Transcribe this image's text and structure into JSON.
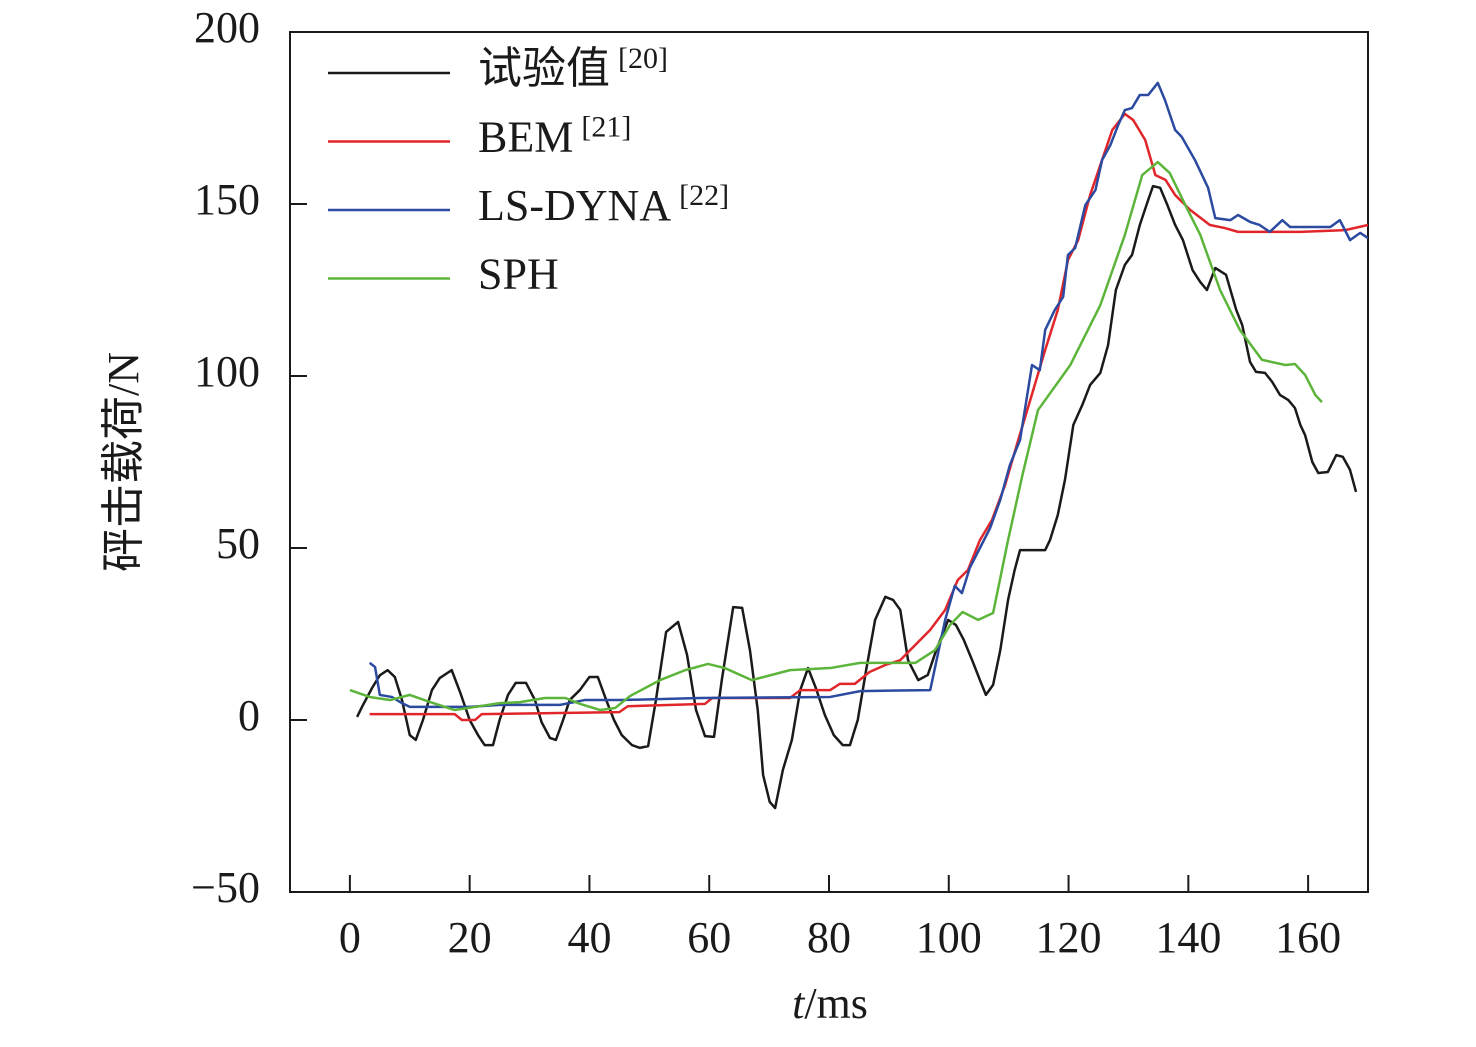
{
  "chart_data": {
    "type": "line",
    "xlabel": "t/ms",
    "ylabel": "砰击载荷/N",
    "xlim": [
      -10,
      170
    ],
    "ylim": [
      -50,
      200
    ],
    "xticks": [
      0,
      20,
      40,
      60,
      80,
      100,
      120,
      140,
      160
    ],
    "yticks": [
      {
        "value": -50,
        "label": "−50"
      },
      0,
      50,
      100,
      150,
      200
    ],
    "legend": "upper left",
    "grid": false,
    "series": [
      {
        "name": "试验值[20]",
        "color": "#1a1a1a",
        "x": [
          1.2,
          2.2,
          3.7,
          5,
          6.3,
          7.5,
          8.7,
          10,
          11,
          12.2,
          13.7,
          15,
          17,
          18.4,
          20,
          21.4,
          22.5,
          23.9,
          25,
          26.4,
          27.7,
          29.4,
          30.9,
          32,
          33.4,
          34.4,
          35.6,
          36.7,
          38.4,
          40,
          41.4,
          42.8,
          44.1,
          45.4,
          47.1,
          48.4,
          49.8,
          51.1,
          52.8,
          54.8,
          56.3,
          57.8,
          59.3,
          60.8,
          62.1,
          64,
          65.5,
          66.8,
          68.1,
          69,
          70.1,
          71,
          72.3,
          73.8,
          75.2,
          76.5,
          77.8,
          79.3,
          80.8,
          82.3,
          83.5,
          84.8,
          86.2,
          87.7,
          89.4,
          90.7,
          91.9,
          93.2,
          94.9,
          96.5,
          97.9,
          99.9,
          101.2,
          102.5,
          103.9,
          105.2,
          106.2,
          107.4,
          108.6,
          109.9,
          111,
          111.9,
          116.1,
          116.9,
          118.2,
          119.4,
          120.8,
          122.3,
          123.6,
          125.3,
          126.6,
          127.9,
          129.4,
          130.6,
          131.9,
          133.3,
          134.1,
          135.3,
          136.5,
          137.8,
          139.1,
          140.7,
          142,
          143.1,
          144.5,
          146.3,
          148,
          149,
          150.3,
          151.3,
          152.8,
          154,
          155.3,
          156.7,
          157.8,
          158.7,
          159.5,
          160.7,
          161.7,
          163.3,
          164.7,
          165.8,
          167,
          168
        ],
        "values": [
          0.9,
          4.4,
          9.3,
          13,
          14.5,
          12.5,
          5.8,
          -4.4,
          -5.8,
          0,
          8.7,
          12.2,
          14.5,
          8.1,
          0,
          -4.4,
          -7.3,
          -7.3,
          0,
          7.3,
          10.8,
          10.8,
          5.8,
          -0.6,
          -5.2,
          -5.8,
          0,
          5.8,
          8.7,
          12.5,
          12.5,
          5.8,
          0,
          -4.4,
          -7.3,
          -8.1,
          -7.6,
          5.8,
          25.6,
          28.5,
          18.9,
          2.9,
          -4.7,
          -4.9,
          11.6,
          32.8,
          32.6,
          20.3,
          2.9,
          -16,
          -23.8,
          -25.6,
          -14.5,
          -5.8,
          8.7,
          15.1,
          9.3,
          1.5,
          -4.4,
          -7.3,
          -7.3,
          0,
          14.5,
          29.1,
          35.8,
          34.9,
          32,
          17.4,
          11.6,
          13.1,
          20.3,
          29.1,
          27.6,
          23.3,
          17.4,
          11.6,
          7.3,
          10.2,
          20.3,
          34.9,
          43.6,
          49.4,
          49.4,
          52.3,
          59.6,
          69.8,
          85.8,
          91.6,
          97.4,
          100.9,
          109,
          125,
          132.3,
          135.2,
          143.9,
          151.2,
          155.2,
          154.7,
          149.7,
          143.9,
          139.5,
          130.8,
          127.3,
          125,
          131.4,
          129.4,
          119.2,
          114.8,
          104.1,
          101.2,
          100.9,
          98.3,
          94.5,
          93,
          90.7,
          85.8,
          82.8,
          75,
          71.8,
          72.1,
          77,
          76.5,
          72.7,
          66.3
        ]
      },
      {
        "name": "BEM[21]",
        "color": "#e0262b",
        "x": [
          3.3,
          17.5,
          18.7,
          20.9,
          22,
          45,
          46.4,
          59.3,
          60.5,
          73.5,
          75.2,
          80.2,
          81.8,
          84.3,
          86.8,
          89.4,
          91.9,
          94.4,
          96.9,
          99.4,
          101.5,
          103.2,
          105.2,
          107.2,
          109.4,
          111.6,
          113.6,
          116.1,
          118.2,
          119.9,
          121.6,
          123.6,
          125.3,
          127.3,
          129.4,
          130.8,
          132.8,
          134.5,
          136.2,
          137.8,
          140.3,
          143.6,
          146.1,
          148.3,
          158.7,
          166.2,
          170
        ],
        "values": [
          1.7,
          1.7,
          0,
          0,
          1.7,
          2.3,
          4,
          4.7,
          6.4,
          6.4,
          8.7,
          8.7,
          10.5,
          10.5,
          14,
          16,
          17.4,
          21.8,
          26.2,
          32,
          40.7,
          43.6,
          52.3,
          58.1,
          68.3,
          81.4,
          93,
          107.6,
          119.2,
          133.7,
          139.5,
          152.6,
          161.3,
          171.5,
          176.2,
          174.4,
          168.6,
          158.4,
          157,
          152.6,
          148.3,
          143.9,
          143,
          141.9,
          141.9,
          142.4,
          143.9
        ]
      },
      {
        "name": "LS-DYNA[22]",
        "color": "#2b4aa0",
        "x": [
          3.3,
          4.2,
          5,
          7,
          8.7,
          10,
          20,
          25,
          35.1,
          39.2,
          45.4,
          58.5,
          80.2,
          85.2,
          96.9,
          99.4,
          101,
          102.2,
          103.5,
          105.2,
          106.9,
          108.6,
          110.2,
          111.9,
          113.9,
          115.2,
          116.1,
          117.7,
          119.1,
          119.9,
          121.1,
          122.8,
          124.5,
          125.6,
          127,
          128.3,
          129.4,
          130.6,
          131.9,
          133.3,
          134.9,
          136.1,
          137.8,
          138.9,
          141.1,
          143.3,
          144.5,
          147,
          148.3,
          150.3,
          151.9,
          153.6,
          155.7,
          157,
          158.7,
          163.7,
          165.3,
          167,
          168.7,
          170
        ],
        "values": [
          16.6,
          15.4,
          7.3,
          6.7,
          4.9,
          3.8,
          3.8,
          4.4,
          4.4,
          5.8,
          5.8,
          6.4,
          6.7,
          8.4,
          8.7,
          29.1,
          39,
          36.9,
          44.2,
          50,
          55.8,
          64,
          74.1,
          81.4,
          103.2,
          101.7,
          113.4,
          119.2,
          123,
          135.2,
          137.2,
          149.7,
          154.1,
          162.8,
          167.2,
          173,
          177.3,
          177.9,
          181.7,
          181.7,
          185.2,
          180.2,
          171.5,
          169.5,
          162.8,
          154.7,
          145.9,
          145.3,
          146.8,
          144.8,
          143.9,
          141.9,
          145.3,
          143.3,
          143.3,
          143.3,
          145.3,
          139.5,
          141.6,
          140.1
        ]
      },
      {
        "name": "SPH",
        "color": "#5cb53a",
        "x": [
          0,
          3.3,
          6.7,
          10,
          13.4,
          17.5,
          20.9,
          25,
          28.4,
          32.6,
          36,
          38.4,
          41.8,
          44.3,
          46.8,
          51.8,
          56,
          59.8,
          62.6,
          67.1,
          73.5,
          80.2,
          85.2,
          90.2,
          94.4,
          97.7,
          100.2,
          102.3,
          104.9,
          107.4,
          109.9,
          112.3,
          114.9,
          120.3,
          125.3,
          129.4,
          132.3,
          134.9,
          136.9,
          139.5,
          142,
          145.3,
          148.6,
          152.3,
          156.2,
          157.8,
          159.5,
          161.2,
          162.3
        ],
        "values": [
          8.7,
          6.7,
          5.8,
          7.3,
          5.2,
          2.9,
          3.8,
          4.9,
          5.2,
          6.4,
          6.4,
          4.7,
          2.9,
          3.5,
          7,
          11.6,
          14.5,
          16.3,
          15.1,
          11.6,
          14.5,
          15.1,
          16.6,
          16.6,
          16.6,
          20.3,
          27.6,
          31.4,
          29.1,
          31.1,
          52.3,
          71.2,
          90.1,
          103.2,
          120.6,
          141,
          158.4,
          162.2,
          159,
          149.7,
          141,
          125,
          113.4,
          104.7,
          103.2,
          103.5,
          100.3,
          94.5,
          92.4
        ]
      }
    ]
  }
}
